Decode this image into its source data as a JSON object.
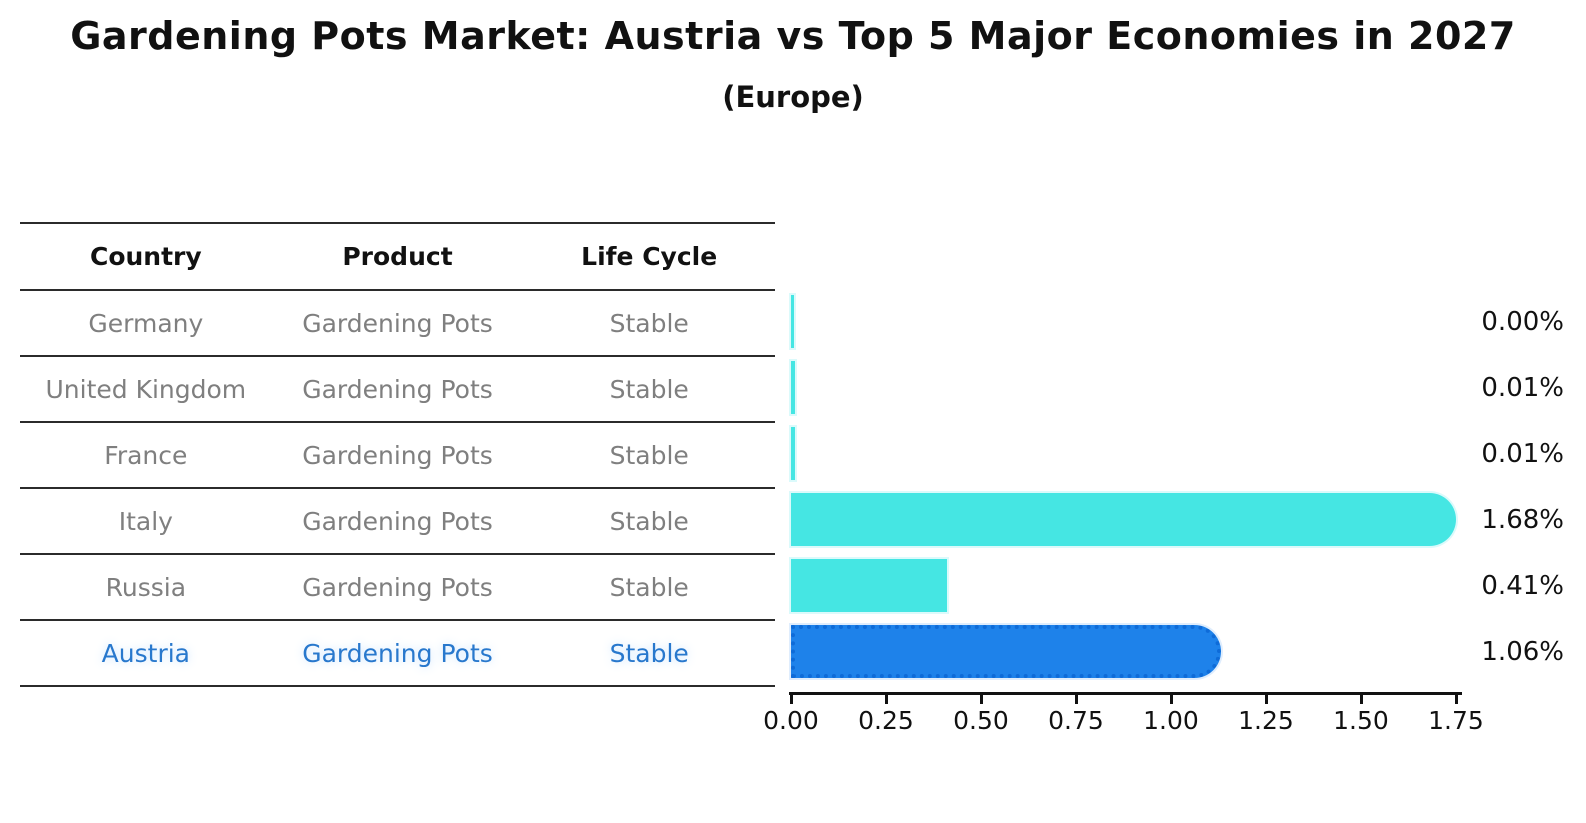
{
  "header": {
    "title": "Gardening Pots Market: Austria vs Top 5 Major Economies in 2027",
    "subtitle": "(Europe)"
  },
  "table": {
    "columns": [
      "Country",
      "Product",
      "Life Cycle"
    ],
    "rows": [
      {
        "country": "Germany",
        "product": "Gardening Pots",
        "life_cycle": "Stable",
        "highlight": false
      },
      {
        "country": "United Kingdom",
        "product": "Gardening Pots",
        "life_cycle": "Stable",
        "highlight": false
      },
      {
        "country": "France",
        "product": "Gardening Pots",
        "life_cycle": "Stable",
        "highlight": false
      },
      {
        "country": "Italy",
        "product": "Gardening Pots",
        "life_cycle": "Stable",
        "highlight": false
      },
      {
        "country": "Russia",
        "product": "Gardening Pots",
        "life_cycle": "Stable",
        "highlight": false
      },
      {
        "country": "Austria",
        "product": "Gardening Pots",
        "life_cycle": "Stable",
        "highlight": true
      }
    ]
  },
  "chart_data": {
    "type": "bar",
    "orientation": "horizontal",
    "title": "Gardening Pots Market: Austria vs Top 5 Major Economies in 2027 (Europe)",
    "categories": [
      "Germany",
      "United Kingdom",
      "France",
      "Italy",
      "Russia",
      "Austria"
    ],
    "values": [
      0.0,
      0.01,
      0.01,
      1.68,
      0.41,
      1.06
    ],
    "value_labels": [
      "0.00%",
      "0.01%",
      "0.01%",
      "1.68%",
      "0.41%",
      "1.06%"
    ],
    "unit": "%",
    "x_ticks": [
      "0.00",
      "0.25",
      "0.50",
      "0.75",
      "1.00",
      "1.25",
      "1.50",
      "1.75"
    ],
    "x_tick_values": [
      0.0,
      0.25,
      0.5,
      0.75,
      1.0,
      1.25,
      1.5,
      1.75
    ],
    "xlim": [
      0,
      1.75
    ],
    "grid": false,
    "legend": "none",
    "highlight_index": 5,
    "bar_color": "#45e6e3",
    "highlight_color": "#1e82ea",
    "highlight_border_color": "#0e6bd8",
    "axis_color": "#111111",
    "muted_text_color": "#7f7f7f",
    "highlight_text_color": "#2878cd"
  }
}
